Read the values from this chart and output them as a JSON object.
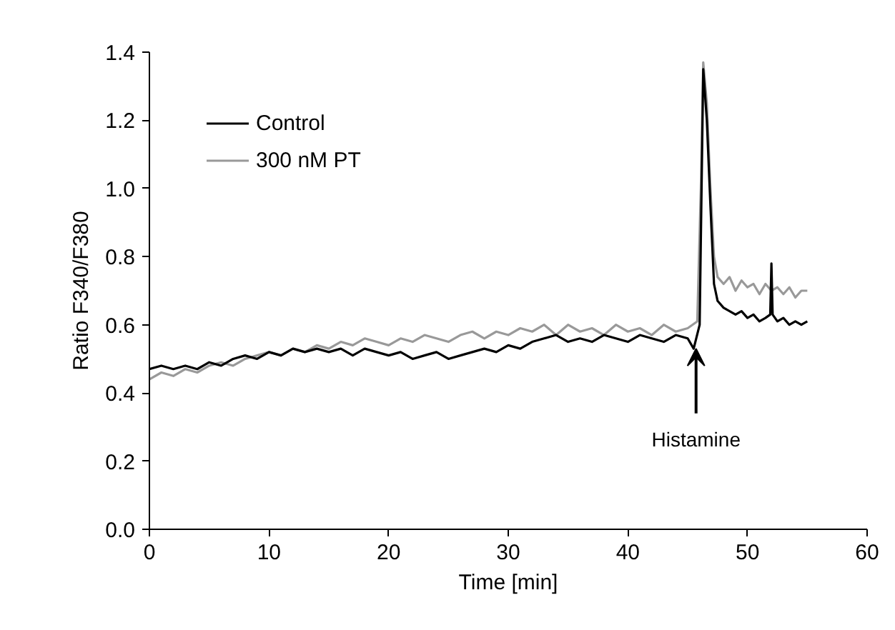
{
  "chart_data": {
    "type": "line",
    "xlabel": "Time [min]",
    "ylabel": "Ratio F340/F380",
    "xlim": [
      0,
      60
    ],
    "ylim": [
      0,
      1.4
    ],
    "xticks": [
      0,
      10,
      20,
      30,
      40,
      50,
      60
    ],
    "yticks": [
      {
        "value": 0,
        "label": "0.0"
      },
      {
        "value": 0.2,
        "label": "0.2"
      },
      {
        "value": 0.4,
        "label": "0.4"
      },
      {
        "value": 0.6,
        "label": "0.6"
      },
      {
        "value": 0.8,
        "label": "0.8"
      },
      {
        "value": 1.0,
        "label": "1.0"
      },
      {
        "value": 1.2,
        "label": "1.2"
      },
      {
        "value": 1.4,
        "label": "1.4"
      }
    ],
    "grid": false,
    "legend": "top left",
    "marker": "none",
    "line_style": "solid",
    "annotations": [
      {
        "text": "Histamine",
        "x": 45.7,
        "y": 0.54
      }
    ],
    "series": [
      {
        "name": "300 nM PT",
        "color": "#999999",
        "x": [
          0,
          1,
          2,
          3,
          4,
          5,
          6,
          7,
          8,
          9,
          10,
          11,
          12,
          13,
          14,
          15,
          16,
          17,
          18,
          19,
          20,
          21,
          22,
          23,
          24,
          25,
          26,
          27,
          28,
          29,
          30,
          31,
          32,
          33,
          34,
          35,
          36,
          37,
          38,
          39,
          40,
          41,
          42,
          43,
          44,
          45,
          45.8,
          46.1,
          46.3,
          46.6,
          46.9,
          47.2,
          47.5,
          48,
          48.5,
          49,
          49.5,
          50,
          50.5,
          51,
          51.5,
          52,
          52.5,
          53,
          53.5,
          54,
          54.5,
          55
        ],
        "values": [
          0.44,
          0.46,
          0.45,
          0.47,
          0.46,
          0.48,
          0.49,
          0.48,
          0.5,
          0.51,
          0.52,
          0.51,
          0.53,
          0.52,
          0.54,
          0.53,
          0.55,
          0.54,
          0.56,
          0.55,
          0.54,
          0.56,
          0.55,
          0.57,
          0.56,
          0.55,
          0.57,
          0.58,
          0.56,
          0.58,
          0.57,
          0.59,
          0.58,
          0.6,
          0.57,
          0.6,
          0.58,
          0.59,
          0.57,
          0.6,
          0.58,
          0.59,
          0.57,
          0.6,
          0.58,
          0.59,
          0.61,
          1.0,
          1.37,
          1.25,
          1.0,
          0.8,
          0.74,
          0.72,
          0.74,
          0.7,
          0.73,
          0.71,
          0.72,
          0.69,
          0.72,
          0.7,
          0.71,
          0.69,
          0.71,
          0.68,
          0.7,
          0.7
        ]
      },
      {
        "name": "Control",
        "color": "#000000",
        "x": [
          0,
          1,
          2,
          3,
          4,
          5,
          6,
          7,
          8,
          9,
          10,
          11,
          12,
          13,
          14,
          15,
          16,
          17,
          18,
          19,
          20,
          21,
          22,
          23,
          24,
          25,
          26,
          27,
          28,
          29,
          30,
          31,
          32,
          33,
          34,
          35,
          36,
          37,
          38,
          39,
          40,
          41,
          42,
          43,
          44,
          45,
          45.5,
          46.0,
          46.3,
          46.6,
          46.9,
          47.2,
          47.5,
          48,
          48.5,
          49,
          49.5,
          50,
          50.5,
          51,
          51.5,
          51.9,
          52.0,
          52.1,
          52.5,
          53,
          53.5,
          54,
          54.5,
          55
        ],
        "values": [
          0.47,
          0.48,
          0.47,
          0.48,
          0.47,
          0.49,
          0.48,
          0.5,
          0.51,
          0.5,
          0.52,
          0.51,
          0.53,
          0.52,
          0.53,
          0.52,
          0.53,
          0.51,
          0.53,
          0.52,
          0.51,
          0.52,
          0.5,
          0.51,
          0.52,
          0.5,
          0.51,
          0.52,
          0.53,
          0.52,
          0.54,
          0.53,
          0.55,
          0.56,
          0.57,
          0.55,
          0.56,
          0.55,
          0.57,
          0.56,
          0.55,
          0.57,
          0.56,
          0.55,
          0.57,
          0.56,
          0.53,
          0.6,
          1.35,
          1.2,
          0.95,
          0.72,
          0.67,
          0.65,
          0.64,
          0.63,
          0.64,
          0.62,
          0.63,
          0.61,
          0.62,
          0.63,
          0.78,
          0.63,
          0.61,
          0.62,
          0.6,
          0.61,
          0.6,
          0.61
        ]
      }
    ]
  }
}
